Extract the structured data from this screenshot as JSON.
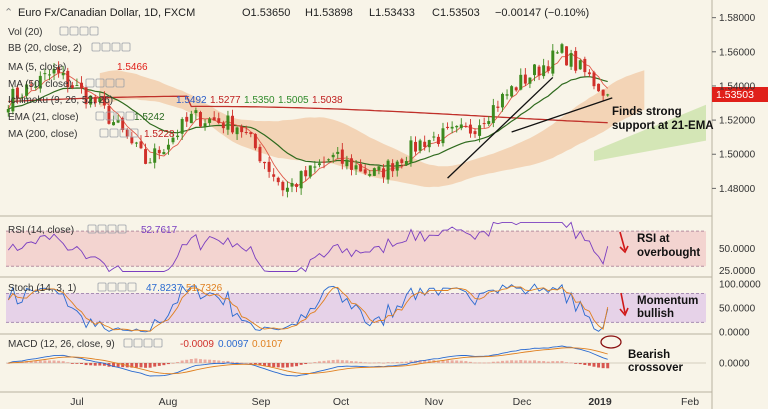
{
  "header": {
    "symbol": "Euro Fx/Canadian Dollar, 1D, FXCM",
    "open": "O1.53650",
    "high": "H1.53898",
    "low": "L1.53433",
    "close": "C1.53503",
    "change": "−0.00147 (−0.10%)"
  },
  "legend": [
    {
      "name": "vol",
      "label": "Vol (20)"
    },
    {
      "name": "bb",
      "label": "BB (20, close, 2)"
    },
    {
      "name": "ma5",
      "label": "MA (5, close)",
      "value": "1.5466",
      "color": "#e0201a"
    },
    {
      "name": "ma50",
      "label": "MA (50, close)"
    },
    {
      "name": "ichimoku",
      "label": "Ichimoku (9, 26, 52, 26)",
      "values": [
        "1.5492",
        "1.5277",
        "1.5350",
        "1.5005",
        "1.5038"
      ]
    },
    {
      "name": "ema21",
      "label": "EMA (21, close)",
      "value": "1.5242"
    },
    {
      "name": "ma200",
      "label": "MA (200, close)",
      "value": "1.5228"
    }
  ],
  "price_label": "1.53503",
  "annotations": {
    "support_line1": "Finds strong",
    "support_line2": "support at 21-EMA",
    "rsi_line1": "RSI at",
    "rsi_line2": "overbought",
    "momentum_line1": "Momentum",
    "momentum_line2": "bullish",
    "macd_line1": "Bearish",
    "macd_line2": "crossover"
  },
  "rsi": {
    "label": "RSI (14, close)",
    "value": "52.7617"
  },
  "stoch": {
    "label": "Stoch (14, 3, 1)",
    "k": "47.8237",
    "d": "51.7326"
  },
  "macd": {
    "label": "MACD (12, 26, close, 9)",
    "hist": "-0.0009",
    "macd": "0.0097",
    "signal": "0.0107"
  },
  "x_axis": [
    "Jul",
    "Aug",
    "Sep",
    "Oct",
    "Nov",
    "Dec",
    "2019",
    "Feb"
  ],
  "colors": {
    "up": "#3c8a1e",
    "down": "#d0302a",
    "accent": "#e0201a",
    "cloud": "#f1c9a6",
    "cloud_green": "#cfe4b0"
  },
  "chart_data": [
    {
      "type": "candlestick",
      "title": "Euro Fx/Canadian Dollar, 1D, FXCM",
      "ylim": [
        1.465,
        1.588
      ],
      "y_ticks": [
        "1.58000",
        "1.56000",
        "1.54000",
        "1.52000",
        "1.50000",
        "1.48000"
      ],
      "last_price": 1.53503,
      "x_labels": [
        "Jul",
        "Aug",
        "Sep",
        "Oct",
        "Nov",
        "Dec",
        "2019",
        "Feb"
      ],
      "key_closes": [
        1.532,
        1.548,
        1.528,
        1.495,
        1.522,
        1.517,
        1.479,
        1.498,
        1.488,
        1.508,
        1.514,
        1.54,
        1.56,
        1.535
      ]
    },
    {
      "type": "line",
      "title": "RSI (14, close)",
      "ylim": [
        20,
        85
      ],
      "y_ticks": [
        "50.0000",
        "25.0000"
      ],
      "last_value": 52.7617,
      "bands": [
        30,
        70
      ]
    },
    {
      "type": "line",
      "title": "Stoch (14, 3, 1)",
      "ylim": [
        0,
        110
      ],
      "y_ticks": [
        "100.0000",
        "50.0000",
        "0.0000"
      ],
      "series": [
        {
          "name": "%K",
          "last": 47.8237
        },
        {
          "name": "%D",
          "last": 51.7326
        }
      ],
      "bands": [
        20,
        80
      ]
    },
    {
      "type": "line",
      "title": "MACD (12, 26, close, 9)",
      "ylim": [
        -0.02,
        0.02
      ],
      "y_ticks": [
        "0.0000"
      ],
      "series": [
        {
          "name": "Histogram",
          "last": -0.0009
        },
        {
          "name": "MACD",
          "last": 0.0097
        },
        {
          "name": "Signal",
          "last": 0.0107
        }
      ]
    }
  ]
}
